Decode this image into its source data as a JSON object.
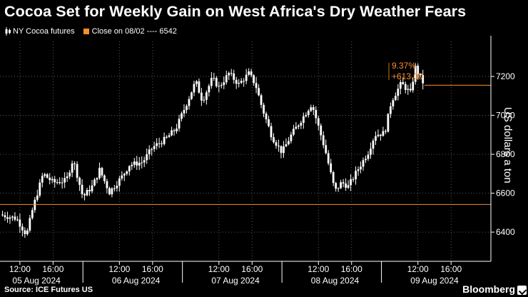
{
  "title": "Cocoa Set for Weekly Gain on West Africa's Dry Weather Fears",
  "legend": {
    "series_label": "NY Cocoa futures",
    "close_label": "Close on 08/02 ---- 6542"
  },
  "source": "Source: ICE Futures US",
  "brand": "Bloomberg",
  "colors": {
    "background": "#000000",
    "candles": "#ffffff",
    "reference": "#ff8c2a",
    "grid": "#6e6e6e",
    "text": "#ffffff"
  },
  "chart_data": {
    "type": "candlestick",
    "ylabel": "US dollars a ton",
    "ylim": [
      6250,
      7380
    ],
    "yticks": [
      6400,
      6600,
      6800,
      7000,
      7200
    ],
    "xlim": [
      0,
      14.8
    ],
    "xticks": [
      {
        "x": 0.6,
        "label": "12:00"
      },
      {
        "x": 1.6,
        "label": "16:00"
      },
      {
        "x": 3.6,
        "label": "12:00"
      },
      {
        "x": 4.6,
        "label": "16:00"
      },
      {
        "x": 6.6,
        "label": "12:00"
      },
      {
        "x": 7.6,
        "label": "16:00"
      },
      {
        "x": 9.6,
        "label": "12:00"
      },
      {
        "x": 10.6,
        "label": "16:00"
      },
      {
        "x": 12.6,
        "label": "12:00"
      },
      {
        "x": 13.6,
        "label": "16:00"
      }
    ],
    "day_labels": [
      {
        "x": 1.1,
        "label": "05 Aug 2024"
      },
      {
        "x": 4.1,
        "label": "06 Aug 2024"
      },
      {
        "x": 7.1,
        "label": "07 Aug 2024"
      },
      {
        "x": 10.1,
        "label": "08 Aug 2024"
      },
      {
        "x": 13.1,
        "label": "09 Aug 2024"
      }
    ],
    "day_separators": [
      2.5,
      5.5,
      8.5,
      11.5
    ],
    "reference_close": 6542,
    "last_price": 7155,
    "change_label_pct": "9.37%",
    "change_label_abs": "+613.00",
    "path_x": [
      0,
      0.5,
      0.8,
      1.0,
      1.3,
      1.6,
      2.0,
      2.2,
      2.5,
      2.8,
      3.0,
      3.3,
      3.7,
      3.9,
      4.3,
      4.6,
      5.0,
      5.3,
      5.6,
      5.9,
      6.1,
      6.4,
      6.6,
      6.9,
      7.2,
      7.5,
      7.7,
      7.9,
      8.2,
      8.5,
      8.8,
      9.0,
      9.4,
      9.8,
      10.1,
      10.3,
      10.5,
      10.8,
      11.1,
      11.3,
      11.6,
      11.8,
      12.1,
      12.4,
      12.5,
      12.7,
      12.8
    ],
    "path_y": [
      6490,
      6470,
      6385,
      6530,
      6700,
      6655,
      6665,
      6775,
      6580,
      6640,
      6720,
      6605,
      6690,
      6745,
      6760,
      6835,
      6880,
      6930,
      7050,
      7175,
      7075,
      7190,
      7145,
      7215,
      7160,
      7215,
      7160,
      7040,
      6890,
      6810,
      6905,
      6955,
      7060,
      6825,
      6610,
      6655,
      6635,
      6725,
      6810,
      6900,
      6910,
      7075,
      7165,
      7110,
      7255,
      7185,
      7155
    ]
  }
}
